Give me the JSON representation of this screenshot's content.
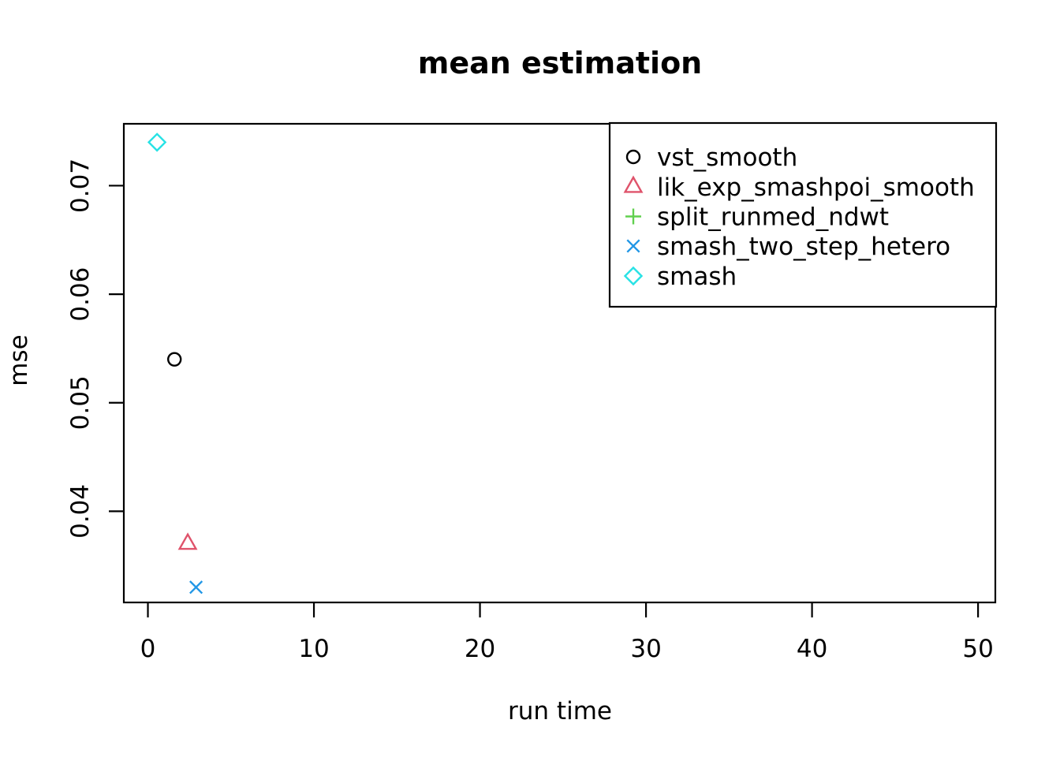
{
  "figure": {
    "background": "#ffffff",
    "border_color": "#000000"
  },
  "chart_data": {
    "type": "scatter",
    "title": "mean estimation",
    "xlabel": "run time",
    "ylabel": "mse",
    "xlim": [
      -1.45,
      51.04
    ],
    "ylim": [
      0.0316,
      0.0757
    ],
    "grid": false,
    "legend_position": "top-right",
    "x_ticks": [
      {
        "value": 0,
        "label": "0"
      },
      {
        "value": 10,
        "label": "10"
      },
      {
        "value": 20,
        "label": "20"
      },
      {
        "value": 30,
        "label": "30"
      },
      {
        "value": 40,
        "label": "40"
      },
      {
        "value": 50,
        "label": "50"
      }
    ],
    "y_ticks": [
      {
        "value": 0.04,
        "label": "0.04"
      },
      {
        "value": 0.05,
        "label": "0.05"
      },
      {
        "value": 0.06,
        "label": "0.06"
      },
      {
        "value": 0.07,
        "label": "0.07"
      }
    ],
    "series": [
      {
        "name": "vst_smooth",
        "marker": "circle",
        "color": "#000000",
        "points": [
          {
            "x": 1.6,
            "y": 0.054
          }
        ]
      },
      {
        "name": "lik_exp_smashpoi_smooth",
        "marker": "triangle",
        "color": "#DF536B",
        "points": [
          {
            "x": 2.4,
            "y": 0.037
          }
        ]
      },
      {
        "name": "split_runmed_ndwt",
        "marker": "plus",
        "color": "#61D04F",
        "points": []
      },
      {
        "name": "smash_two_step_hetero",
        "marker": "x",
        "color": "#2297E6",
        "points": [
          {
            "x": 2.9,
            "y": 0.033
          }
        ]
      },
      {
        "name": "smash",
        "marker": "diamond",
        "color": "#28E2E5",
        "points": [
          {
            "x": 0.55,
            "y": 0.074
          }
        ]
      }
    ]
  }
}
